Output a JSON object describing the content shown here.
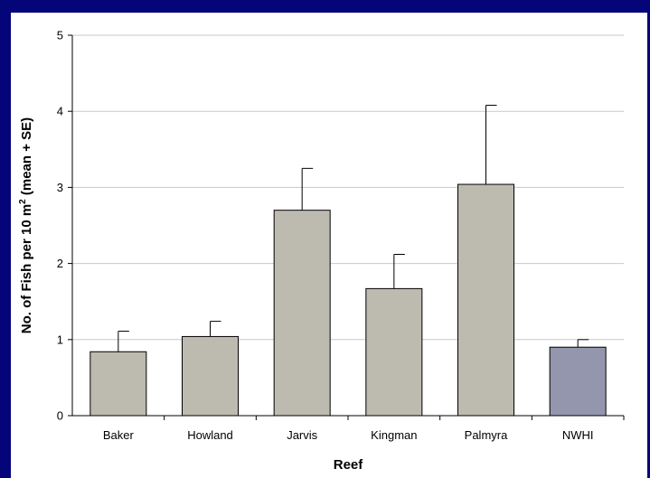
{
  "chart_data": {
    "type": "bar",
    "title": "",
    "xlabel": "Reef",
    "ylabel": {
      "main": "No. of Fish per 10 m",
      "sup": "2",
      "tail": " (mean + SE)"
    },
    "categories": [
      "Baker",
      "Howland",
      "Jarvis",
      "Kingman",
      "Palmyra",
      "NWHI"
    ],
    "series": [
      {
        "values": [
          0.84,
          1.04,
          2.7,
          1.67,
          3.04,
          0.9
        ],
        "se": [
          0.27,
          0.2,
          0.55,
          0.45,
          1.04,
          0.1
        ]
      }
    ],
    "bar_colors": [
      "#bdbbb0",
      "#bdbbb0",
      "#bdbbb0",
      "#bdbbb0",
      "#bdbbb0",
      "#9496ad"
    ],
    "ylim": [
      0,
      5
    ],
    "yticks": [
      0,
      1,
      2,
      3,
      4,
      5
    ],
    "grid": true,
    "legend": "none"
  },
  "colors": {
    "background": "#05057a",
    "plot_background": "#ffffff",
    "gridline": "#c8c8c8",
    "bar_stroke": "#000000"
  }
}
